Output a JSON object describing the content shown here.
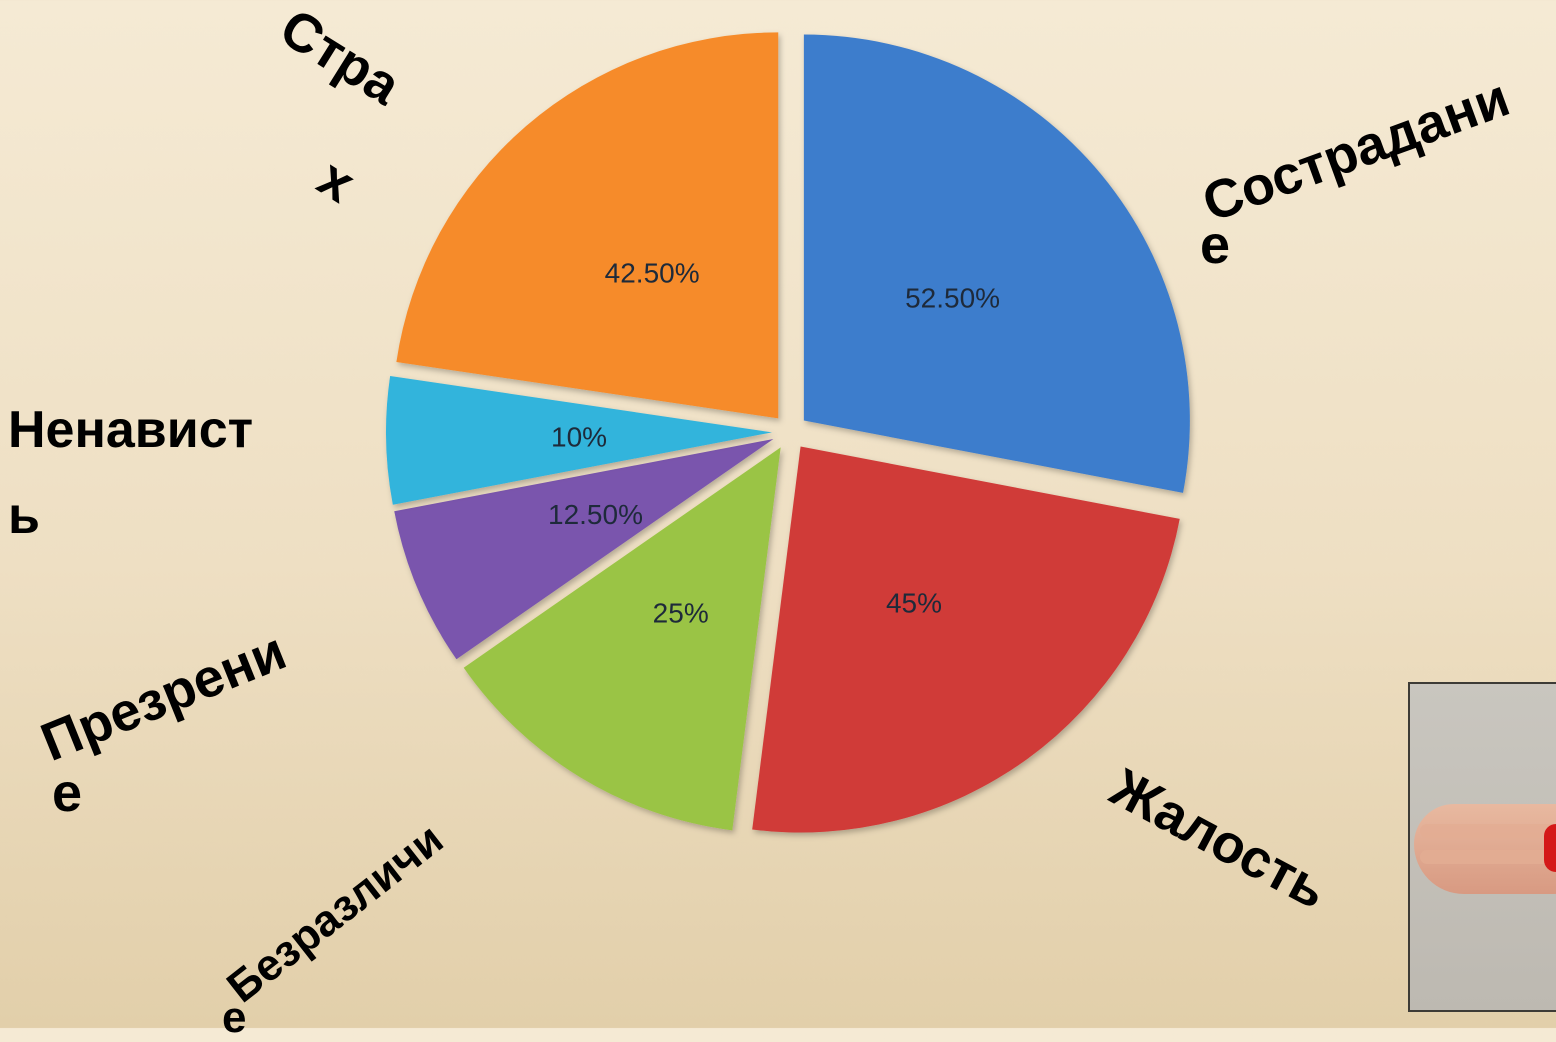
{
  "chart_data": {
    "type": "pie",
    "slices": [
      {
        "name": "Сострадание",
        "value": 52.5,
        "label": "52.50%",
        "color": "#3e7dcc"
      },
      {
        "name": "Жалость",
        "value": 45,
        "label": "45%",
        "color": "#d03a38"
      },
      {
        "name": "Безразличие",
        "value": 25,
        "label": "25%",
        "color": "#9ac444"
      },
      {
        "name": "Презрение",
        "value": 12.5,
        "label": "12.50%",
        "color": "#7a55ad"
      },
      {
        "name": "Ненависть",
        "value": 10,
        "label": "10%",
        "color": "#31b4dc"
      },
      {
        "name": "Страх",
        "value": 42.5,
        "label": "42.50%",
        "color": "#f68b2a"
      }
    ],
    "exploded": true,
    "legend": "none"
  },
  "category_labels": [
    {
      "text1": "Сострадани",
      "text2": "е"
    },
    {
      "text1": "Жалость",
      "text2": ""
    },
    {
      "text1": "Безразличи",
      "text2": "е"
    },
    {
      "text1": "Презрени",
      "text2": "е"
    },
    {
      "text1": "Ненавист",
      "text2": "ь"
    },
    {
      "text1": "Стра",
      "text2": "х"
    }
  ]
}
